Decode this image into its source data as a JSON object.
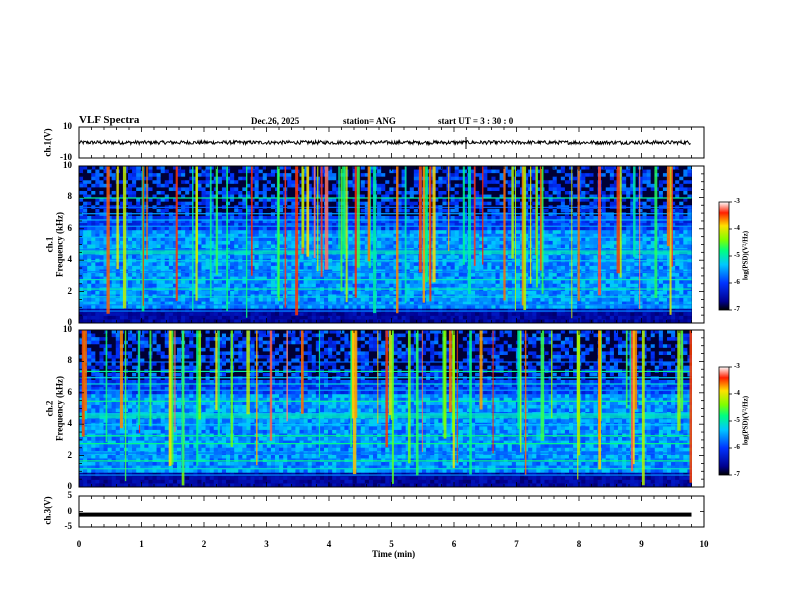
{
  "header": {
    "title": "VLF Spectra",
    "date": "Dec.26, 2025",
    "station": "station= ANG",
    "start": "start  UT  =   3  : 30 : 0"
  },
  "chart_data": [
    {
      "type": "line",
      "id": "ch1-waveform",
      "ylabel": "ch.1(V)",
      "ylim": [
        -10,
        10
      ],
      "y_ticks": [
        "10",
        "-10"
      ],
      "xlim": [
        0,
        10
      ]
    },
    {
      "type": "heatmap",
      "id": "ch1-spectrogram",
      "ylabel": "ch.1\nFrequency (kHz)",
      "ylabel_channel": "ch.1",
      "ylabel_axis": "Frequency (kHz)",
      "ylim": [
        0,
        10
      ],
      "y_ticks": [
        "0",
        "2",
        "4",
        "6",
        "8",
        "10"
      ],
      "xlim": [
        0,
        10
      ],
      "data_end_min": 9.8,
      "colorbar": {
        "label": "log(PSD)(V²/Hz)",
        "range": [
          -7,
          -3
        ],
        "ticks": [
          "-3",
          "-4",
          "-5",
          "-6",
          "-7"
        ]
      }
    },
    {
      "type": "heatmap",
      "id": "ch2-spectrogram",
      "ylabel": "ch.2\nFrequency (kHz)",
      "ylabel_channel": "ch.2",
      "ylabel_axis": "Frequency (kHz)",
      "ylim": [
        0,
        10
      ],
      "y_ticks": [
        "0",
        "2",
        "4",
        "6",
        "8",
        "10"
      ],
      "xlim": [
        0,
        10
      ],
      "data_end_min": 9.8,
      "colorbar": {
        "label": "log(PSD)(V²/Hz)",
        "range": [
          -7,
          -3
        ],
        "ticks": [
          "-3",
          "-4",
          "-5",
          "-6",
          "-7"
        ]
      }
    },
    {
      "type": "line",
      "id": "ch3-waveform",
      "ylabel": "ch.3(V)",
      "ylim": [
        -5,
        5
      ],
      "y_ticks": [
        "5",
        "0",
        "-5"
      ],
      "xlim": [
        0,
        10
      ],
      "level": -1
    }
  ],
  "x_axis": {
    "label": "Time (min)",
    "ticks": [
      "0",
      "1",
      "2",
      "3",
      "4",
      "5",
      "6",
      "7",
      "8",
      "9",
      "10"
    ]
  },
  "colors": {
    "background": "#ffffff",
    "axes": "#000000"
  }
}
